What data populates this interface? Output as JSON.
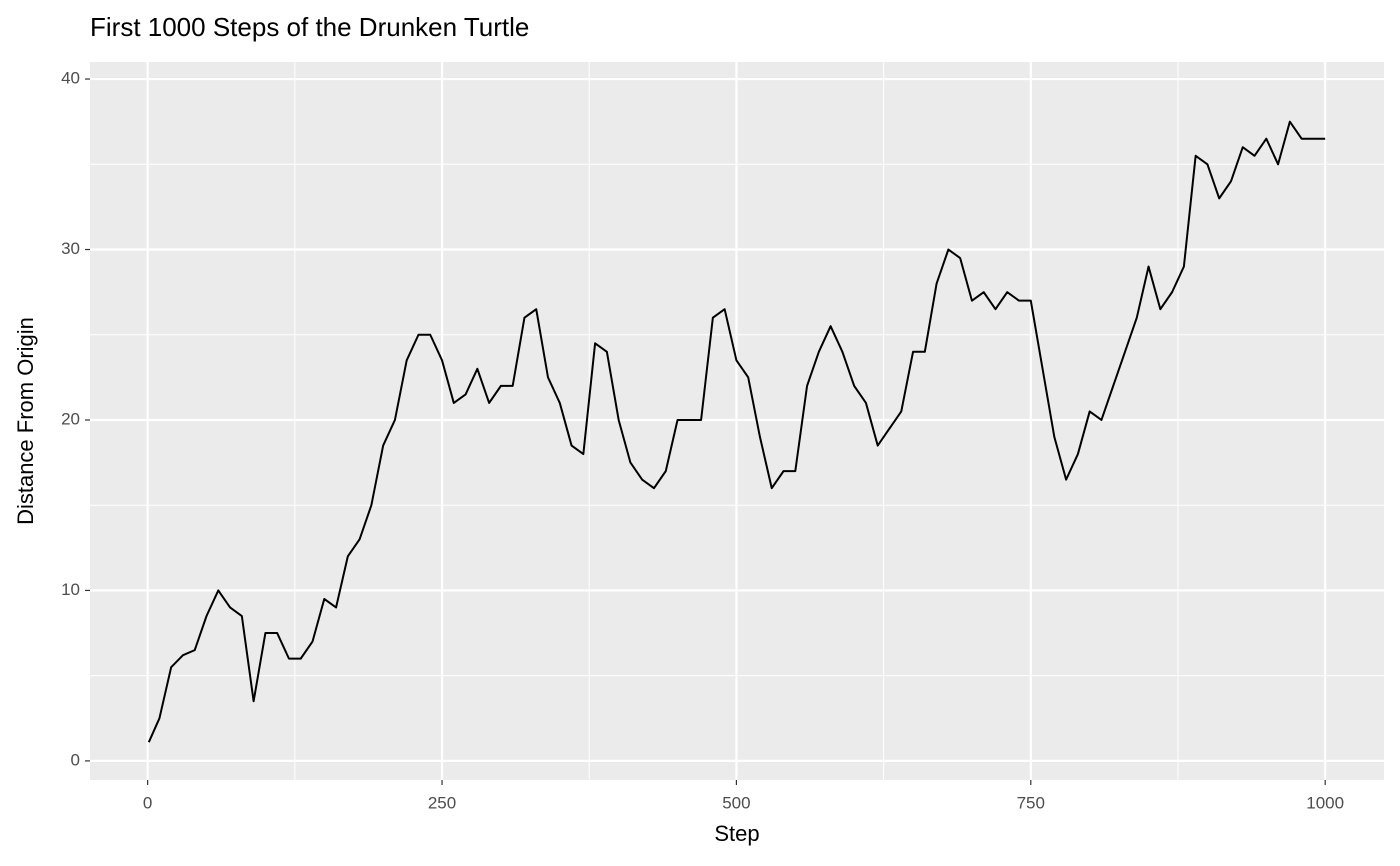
{
  "chart_data": {
    "type": "line",
    "title": "First 1000 Steps of the Drunken Turtle",
    "x_label": "Step",
    "y_label": "Distance From Origin",
    "x": [
      1,
      10,
      20,
      30,
      40,
      50,
      60,
      70,
      80,
      90,
      100,
      110,
      120,
      130,
      140,
      150,
      160,
      170,
      180,
      190,
      200,
      210,
      220,
      230,
      240,
      250,
      260,
      270,
      280,
      290,
      300,
      310,
      320,
      330,
      340,
      350,
      360,
      370,
      380,
      390,
      400,
      410,
      420,
      430,
      440,
      450,
      460,
      470,
      480,
      490,
      500,
      510,
      520,
      530,
      540,
      550,
      560,
      570,
      580,
      590,
      600,
      610,
      620,
      630,
      640,
      650,
      660,
      670,
      680,
      690,
      700,
      710,
      720,
      730,
      740,
      750,
      760,
      770,
      780,
      790,
      800,
      810,
      820,
      830,
      840,
      850,
      860,
      870,
      880,
      890,
      900,
      910,
      920,
      930,
      940,
      950,
      960,
      970,
      980,
      990,
      1000
    ],
    "series": [
      {
        "name": "distance",
        "color": "#000000",
        "values": [
          1.1,
          2.5,
          5.5,
          6.2,
          6.5,
          8.5,
          10,
          9,
          8.5,
          3.5,
          7.5,
          7.5,
          6,
          6,
          7,
          9.5,
          9,
          12,
          13,
          15,
          18.5,
          20,
          23.5,
          25,
          25,
          23.5,
          21,
          21.5,
          23,
          21,
          22,
          22,
          26,
          26.5,
          22.5,
          21,
          18.5,
          18,
          24.5,
          24,
          20,
          17.5,
          16.5,
          16,
          17,
          20,
          20,
          20,
          26,
          26.5,
          23.5,
          22.5,
          19,
          16,
          17,
          17,
          22,
          24,
          25.5,
          24,
          22,
          21,
          18.5,
          19.5,
          20.5,
          24,
          24,
          28,
          30,
          29.5,
          27,
          27.5,
          26.5,
          27.5,
          27,
          27,
          23,
          19,
          16.5,
          18,
          20.5,
          20,
          22,
          24,
          26,
          29,
          26.5,
          27.5,
          29,
          35.5,
          35,
          33,
          34,
          36,
          35.5,
          36.5,
          35,
          37.5,
          36.5,
          36.5,
          36.5
        ]
      }
    ],
    "xlim": [
      -48.95,
      1049.95
    ],
    "ylim": [
      -1.12,
      41.0
    ],
    "xticks": [
      0,
      250,
      500,
      750,
      1000
    ],
    "yticks": [
      0,
      10,
      20,
      30,
      40
    ],
    "grid": true
  }
}
